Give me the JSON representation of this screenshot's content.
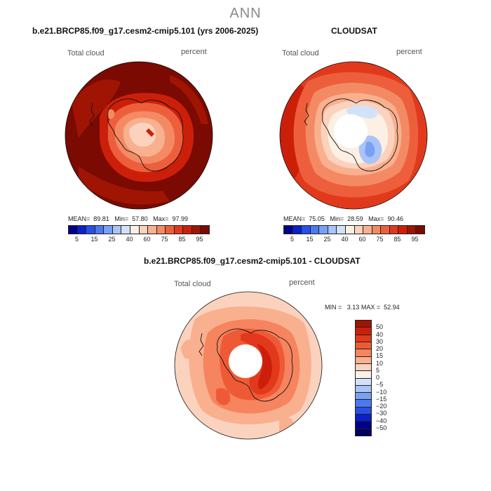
{
  "figure": {
    "season": "ANN",
    "variable": "Total cloud",
    "units": "percent"
  },
  "panels": [
    {
      "title": "b.e21.BRCP85.f09_g17.cesm2-cmip5.101 (yrs 2006-2025)",
      "mean_label": "MEAN=",
      "mean": "89.81",
      "min_label": "Min=",
      "min": "57.80",
      "max_label": "Max=",
      "max": "97.99"
    },
    {
      "title": "CLOUDSAT",
      "mean_label": "MEAN=",
      "mean": "75.05",
      "min_label": "Min=",
      "min": "28.59",
      "max_label": "Max=",
      "max": "90.46"
    }
  ],
  "diff_panel": {
    "title": "b.e21.BRCP85.f09_g17.cesm2-cmip5.101 - CLOUDSAT",
    "min_label": "MIN =",
    "min": "3.13",
    "max_label": "MAX =",
    "max": "52.94"
  },
  "chart_data": {
    "type": "heatmap",
    "projection": "south polar stereographic",
    "abs_colorbar": {
      "levels": [
        "5",
        "15",
        "25",
        "40",
        "60",
        "75",
        "85",
        "95"
      ],
      "colors": [
        "#00008b",
        "#0a20c8",
        "#2850e6",
        "#4c78f0",
        "#7aa0f4",
        "#a8c4f8",
        "#d2e2fb",
        "#fcefe4",
        "#fbd2bd",
        "#f8b08f",
        "#f48a64",
        "#ed5f3c",
        "#e2391d",
        "#cc1f0a",
        "#a01404",
        "#7a0a02"
      ]
    },
    "diff_colorbar": {
      "labels": [
        "50",
        "40",
        "30",
        "20",
        "15",
        "10",
        "5",
        "0",
        "−5",
        "−10",
        "−15",
        "−20",
        "−30",
        "−40",
        "−50"
      ],
      "colors": [
        "#a01404",
        "#cc1f0a",
        "#e2391d",
        "#ef5a36",
        "#f5845f",
        "#f9b08e",
        "#fbd2bd",
        "#fdf0e6",
        "#d2e2fb",
        "#a8c4f8",
        "#7aa0f4",
        "#4c78f0",
        "#2850e6",
        "#0a20c8",
        "#00008b",
        "#000060"
      ]
    }
  }
}
